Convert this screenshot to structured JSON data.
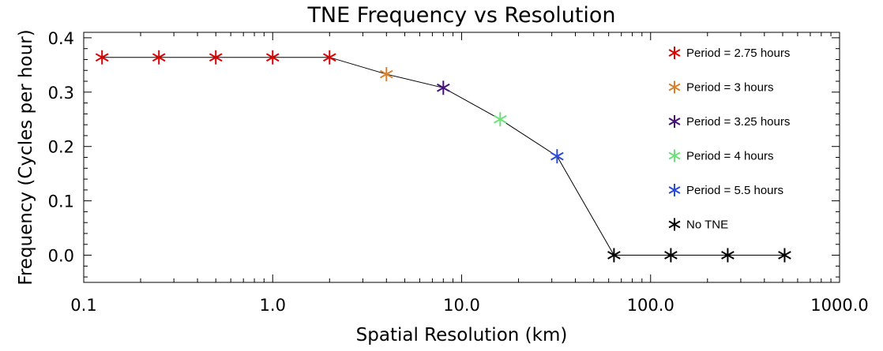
{
  "chart_data": {
    "type": "scatter",
    "title": "TNE Frequency vs Resolution",
    "xlabel": "Spatial Resolution (km)",
    "ylabel": "Frequency (Cycles per hour)",
    "x_scale": "log",
    "xlim": [
      0.1,
      1000.0
    ],
    "ylim": [
      -0.05,
      0.41
    ],
    "x_tick_values": [
      0.1,
      1.0,
      10.0,
      100.0,
      1000.0
    ],
    "x_tick_labels": [
      "0.1",
      "1.0",
      "10.0",
      "100.0",
      "1000.0"
    ],
    "y_tick_values": [
      0.0,
      0.1,
      0.2,
      0.3,
      0.4
    ],
    "y_tick_labels": [
      "0.0",
      "0.1",
      "0.2",
      "0.3",
      "0.4"
    ],
    "grid": false,
    "legend_position": "top-right",
    "line_color": "#000000",
    "series": [
      {
        "name": "Period = 2.75 hours",
        "color": "#dd0000",
        "x": [
          0.125,
          0.25,
          0.5,
          1.0,
          2.0
        ],
        "y": [
          0.364,
          0.364,
          0.364,
          0.364,
          0.364
        ]
      },
      {
        "name": "Period = 3 hours",
        "color": "#d9802a",
        "x": [
          4.0
        ],
        "y": [
          0.333
        ]
      },
      {
        "name": "Period = 3.25 hours",
        "color": "#44107a",
        "x": [
          8.0
        ],
        "y": [
          0.308
        ]
      },
      {
        "name": "Period = 4 hours",
        "color": "#6ee07a",
        "x": [
          16.0
        ],
        "y": [
          0.25
        ]
      },
      {
        "name": "Period = 5.5 hours",
        "color": "#2a4bd7",
        "x": [
          32.0
        ],
        "y": [
          0.182
        ]
      },
      {
        "name": "No TNE",
        "color": "#000000",
        "x": [
          64.0,
          128.0,
          256.0,
          512.0
        ],
        "y": [
          0.0,
          0.0,
          0.0,
          0.0
        ]
      }
    ]
  }
}
